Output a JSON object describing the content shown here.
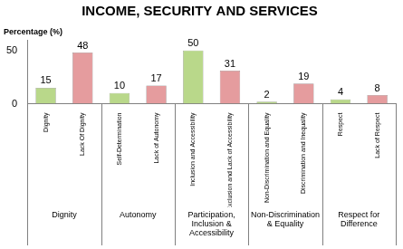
{
  "chart_data": {
    "type": "bar",
    "title": "INCOME, SECURITY AND SERVICES",
    "ylabel": "Percentage (%)",
    "categories": [
      "Dignity",
      "Lack Of Dignity",
      "Self-Determination",
      "Lack of Autonomy",
      "Inclusion and Accessibility",
      "Exclusion and Lack of Accessibility",
      "Non-Discrimination and Equality",
      "Discrimination and Inequality",
      "Respect",
      "Lack of Respect"
    ],
    "category_groups": [
      "Dignity",
      "Dignity",
      "Autonomy",
      "Autonomy",
      "Participation, Inclusion & Accessibility",
      "Participation, Inclusion & Accessibility",
      "Non-Discrimination & Equality",
      "Non-Discrimination & Equality",
      "Respect for Difference",
      "Respect for Difference"
    ],
    "values": [
      15,
      48,
      10,
      17,
      50,
      31,
      2,
      19,
      4,
      8
    ],
    "colors": [
      "#b9d88a",
      "#e59c9e",
      "#b9d88a",
      "#e59c9e",
      "#b9d88a",
      "#e59c9e",
      "#b9d88a",
      "#e59c9e",
      "#b9d88a",
      "#e59c9e"
    ],
    "ylim": [
      0,
      60
    ],
    "yticks": [
      0,
      50
    ],
    "grid": false,
    "data_labels": true
  }
}
